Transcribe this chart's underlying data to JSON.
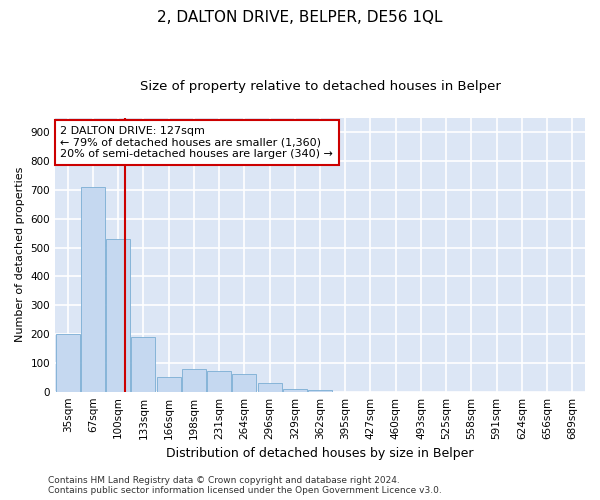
{
  "title": "2, DALTON DRIVE, BELPER, DE56 1QL",
  "subtitle": "Size of property relative to detached houses in Belper",
  "xlabel": "Distribution of detached houses by size in Belper",
  "ylabel": "Number of detached properties",
  "bar_values": [
    200,
    710,
    530,
    190,
    50,
    80,
    70,
    60,
    30,
    10,
    5,
    0,
    0,
    0,
    0,
    0,
    0,
    0,
    0,
    0,
    0
  ],
  "bar_labels": [
    "35sqm",
    "67sqm",
    "100sqm",
    "133sqm",
    "166sqm",
    "198sqm",
    "231sqm",
    "264sqm",
    "296sqm",
    "329sqm",
    "362sqm",
    "395sqm",
    "427sqm",
    "460sqm",
    "493sqm",
    "525sqm",
    "558sqm",
    "591sqm",
    "624sqm",
    "656sqm",
    "689sqm"
  ],
  "bar_color": "#c5d8f0",
  "bar_edge_color": "#7aadd4",
  "plot_bg_color": "#dce6f5",
  "fig_bg_color": "#ffffff",
  "grid_color": "#ffffff",
  "vline_x": 2.27,
  "vline_color": "#cc0000",
  "annotation_text": "2 DALTON DRIVE: 127sqm\n← 79% of detached houses are smaller (1,360)\n20% of semi-detached houses are larger (340) →",
  "annotation_box_facecolor": "#ffffff",
  "annotation_box_edgecolor": "#cc0000",
  "ylim": [
    0,
    950
  ],
  "yticks": [
    0,
    100,
    200,
    300,
    400,
    500,
    600,
    700,
    800,
    900
  ],
  "footer_line1": "Contains HM Land Registry data © Crown copyright and database right 2024.",
  "footer_line2": "Contains public sector information licensed under the Open Government Licence v3.0.",
  "title_fontsize": 11,
  "subtitle_fontsize": 9.5,
  "xlabel_fontsize": 9,
  "ylabel_fontsize": 8,
  "tick_fontsize": 7.5,
  "annotation_fontsize": 8,
  "footer_fontsize": 6.5
}
